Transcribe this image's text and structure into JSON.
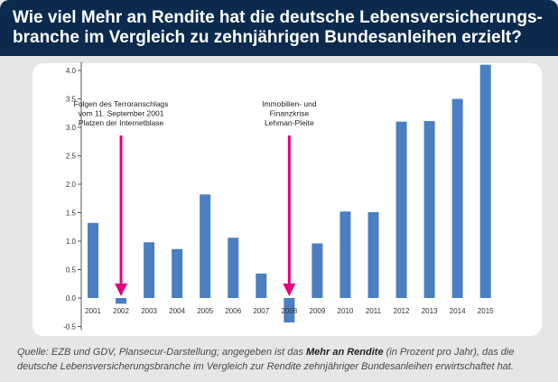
{
  "header": {
    "title": "Wie viel Mehr an Rendite hat die deutsche Lebensversicherungs-branche im Vergleich zu zehnjährigen Bundesanleihen erzielt?"
  },
  "source": {
    "prefix": "Quelle: EZB und GDV, Plansecur-Darstellung; angegeben ist das ",
    "bold": "Mehr an Rendite",
    "suffix": " (in Prozent pro Jahr), das die deutsche Lebensversicherungsbranche im Vergleich zur Rendite zehnjähriger Bundesanleihen erwirtschaftet hat."
  },
  "colors": {
    "header_bg": "#0b2a4e",
    "bar": "#4a7fc1",
    "arrow": "#e5007e",
    "axis": "#555555"
  },
  "chart_data": {
    "type": "bar",
    "categories": [
      "2001",
      "2002",
      "2003",
      "2004",
      "2005",
      "2006",
      "2007",
      "2008",
      "2009",
      "2010",
      "2011",
      "2012",
      "2013",
      "2014",
      "2015"
    ],
    "series": [
      {
        "values": [
          1.32,
          -0.1,
          0.98,
          0.86,
          1.82,
          1.06,
          0.43,
          -0.43,
          0.96,
          1.52,
          1.51,
          3.1,
          3.11,
          3.5,
          4.1
        ]
      }
    ],
    "yticks": [
      "4.0",
      "3.5",
      "3.0",
      "2.5",
      "2.0",
      "1.5",
      "1.0",
      "0.5",
      "0.0",
      "-0.5"
    ],
    "ylim": [
      -0.5,
      4.1
    ],
    "grid": false,
    "annotations": [
      {
        "category": "2002",
        "lines": [
          "Folgen des Terroranschlags",
          "vom 11. September 2001",
          "Platzen der Internetblase"
        ]
      },
      {
        "category": "2008",
        "lines": [
          "Immobilien- und",
          "Finanzkrise",
          "Lehman-Pleite"
        ]
      }
    ]
  }
}
